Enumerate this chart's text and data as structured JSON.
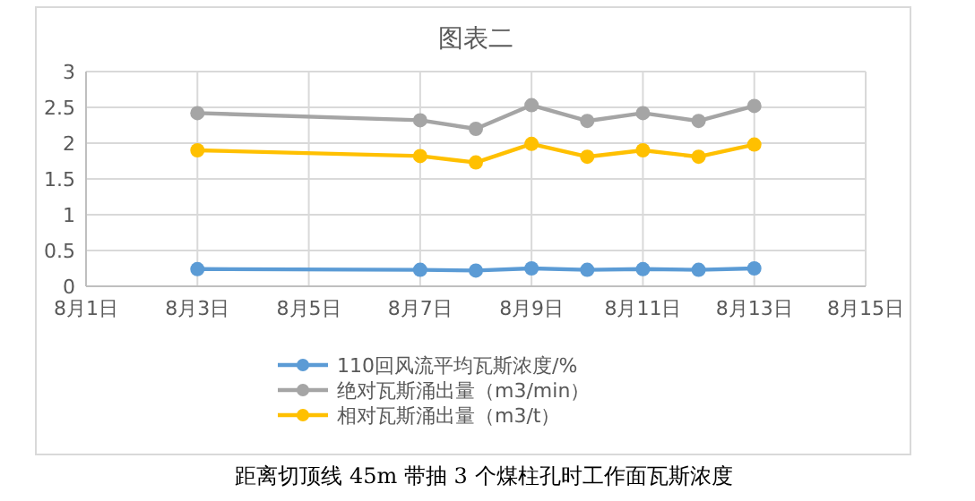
{
  "chart_data": {
    "type": "line",
    "title": "图表二",
    "x": [
      "--08-03",
      "--08-07",
      "--08-08",
      "--08-09",
      "--08-10",
      "--08-11",
      "--08-12",
      "--08-13"
    ],
    "series": [
      {
        "name": "110回风流平均瓦斯浓度/%",
        "color": "#5b9bd5",
        "values": [
          0.24,
          0.23,
          0.22,
          0.25,
          0.23,
          0.24,
          0.23,
          0.25
        ]
      },
      {
        "name": "绝对瓦斯涌出量（m3/min）",
        "color": "#a5a5a5",
        "values": [
          2.42,
          2.32,
          2.2,
          2.53,
          2.31,
          2.42,
          2.31,
          2.52
        ]
      },
      {
        "name": "相对瓦斯涌出量（m3/t）",
        "color": "#ffc000",
        "values": [
          1.9,
          1.82,
          1.73,
          1.99,
          1.81,
          1.9,
          1.81,
          1.98
        ]
      }
    ],
    "xlim": [
      "--08-01",
      "--08-15"
    ],
    "xticks": [
      {
        "value": "--08-01",
        "label": "8月1日"
      },
      {
        "value": "--08-03",
        "label": "8月3日"
      },
      {
        "value": "--08-05",
        "label": "8月5日"
      },
      {
        "value": "--08-07",
        "label": "8月7日"
      },
      {
        "value": "--08-09",
        "label": "8月9日"
      },
      {
        "value": "--08-11",
        "label": "8月11日"
      },
      {
        "value": "--08-13",
        "label": "8月13日"
      },
      {
        "value": "--08-15",
        "label": "8月15日"
      }
    ],
    "ylim": [
      0,
      3
    ],
    "yticks": [
      0,
      0.5,
      1,
      1.5,
      2,
      2.5,
      3
    ],
    "grid": true,
    "legend": "bottom",
    "marker": "circle",
    "line_style": "solid",
    "annotations": [
      "距离切顶线 45m 带抽 3 个煤柱孔时工作面瓦斯浓度"
    ]
  }
}
